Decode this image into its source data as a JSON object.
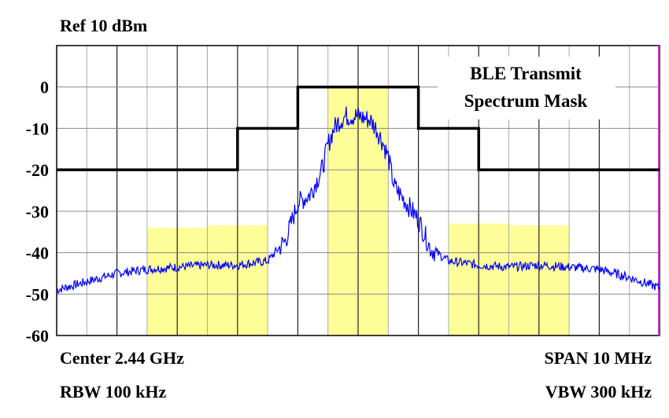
{
  "labels": {
    "ref": "Ref 10 dBm",
    "center": "Center 2.44 GHz",
    "span": "SPAN 10 MHz",
    "rbw": "RBW 100 kHz",
    "vbw": "VBW 300 kHz"
  },
  "chart_data": {
    "type": "line",
    "title": "",
    "xlabel": "",
    "ylabel": "",
    "x_unit": "MHz offset from center",
    "xlim": [
      -5,
      5
    ],
    "ylim": [
      -60,
      10
    ],
    "y_ticks": [
      0,
      -10,
      -20,
      -30,
      -40,
      -50,
      -60
    ],
    "y_tick_labels": [
      "0",
      "-10",
      "-20",
      "-30",
      "-40",
      "-50",
      "-60"
    ],
    "x_divisions": 10,
    "grid": true,
    "annotation": [
      "BLE Transmit",
      "Spectrum Mask"
    ],
    "mask": {
      "color": "#000000",
      "points": [
        [
          -5,
          -20
        ],
        [
          -2,
          -20
        ],
        [
          -2,
          -10
        ],
        [
          -1,
          -10
        ],
        [
          -1,
          0
        ],
        [
          1,
          0
        ],
        [
          1,
          -10
        ],
        [
          2,
          -10
        ],
        [
          2,
          -20
        ],
        [
          5,
          -20
        ]
      ]
    },
    "channel_bands": [
      {
        "x0": -3.5,
        "x1": -2.5,
        "top": -34
      },
      {
        "x0": -2.5,
        "x1": -1.5,
        "top": -33.4
      },
      {
        "x0": -0.5,
        "x1": 0.5,
        "top": 0
      },
      {
        "x0": 1.5,
        "x1": 2.5,
        "top": -33
      },
      {
        "x0": 2.5,
        "x1": 3.5,
        "top": -33.4
      }
    ],
    "band_color": "#ffff99",
    "trace": {
      "color": "#0000ff",
      "x": [
        -5.0,
        -4.5,
        -4.0,
        -3.5,
        -3.0,
        -2.5,
        -2.0,
        -1.5,
        -1.2,
        -1.0,
        -0.8,
        -0.6,
        -0.5,
        -0.4,
        -0.3,
        -0.2,
        -0.1,
        0.0,
        0.1,
        0.2,
        0.3,
        0.4,
        0.5,
        0.6,
        0.8,
        1.0,
        1.2,
        1.5,
        2.0,
        2.5,
        3.0,
        3.5,
        4.0,
        4.5,
        5.0
      ],
      "y": [
        -49,
        -47,
        -45,
        -44,
        -43.5,
        -43,
        -43,
        -42,
        -37,
        -28,
        -26,
        -20,
        -14,
        -10,
        -8,
        -7,
        -7,
        -7,
        -7.5,
        -8,
        -10,
        -13,
        -17,
        -24,
        -28,
        -32,
        -39,
        -42,
        -43,
        -43.5,
        -43,
        -43.5,
        -44,
        -46,
        -48.5
      ]
    }
  }
}
